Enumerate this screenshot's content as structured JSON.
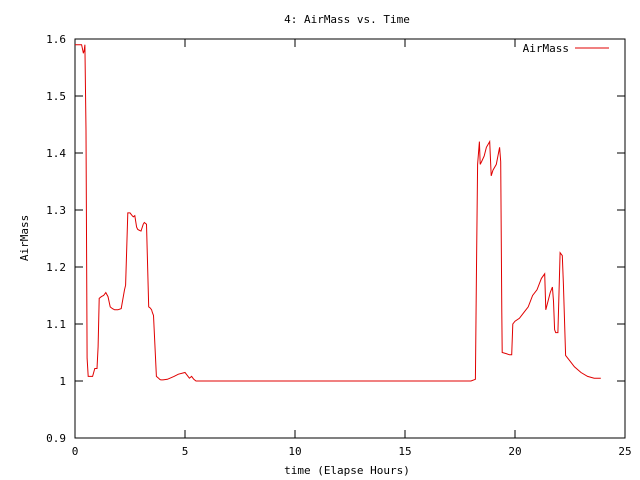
{
  "chart_data": {
    "type": "line",
    "title": "4: AirMass vs. Time",
    "xlabel": "time (Elapse Hours)",
    "ylabel": "AirMass",
    "xlim": [
      0,
      25
    ],
    "ylim": [
      0.9,
      1.6
    ],
    "xticks": [
      0,
      5,
      10,
      15,
      20,
      25
    ],
    "yticks": [
      0.9,
      1.0,
      1.1,
      1.2,
      1.3,
      1.4,
      1.5,
      1.6
    ],
    "ytick_labels": [
      "0.9",
      "1",
      "1.1",
      "1.2",
      "1.3",
      "1.4",
      "1.5",
      "1.6"
    ],
    "grid": false,
    "legend_position": "top-right",
    "series": [
      {
        "name": "AirMass",
        "color": "#e00000",
        "x": [
          0.0,
          0.15,
          0.3,
          0.38,
          0.42,
          0.45,
          0.5,
          0.55,
          0.6,
          0.8,
          0.9,
          1.0,
          1.05,
          1.1,
          1.2,
          1.3,
          1.4,
          1.5,
          1.6,
          1.7,
          1.8,
          1.85,
          1.95,
          2.1,
          2.25,
          2.3,
          2.4,
          2.5,
          2.6,
          2.65,
          2.72,
          2.8,
          2.85,
          2.9,
          3.0,
          3.1,
          3.15,
          3.25,
          3.35,
          3.42,
          3.48,
          3.52,
          3.57,
          3.7,
          3.8,
          3.85,
          3.9,
          4.0,
          4.2,
          4.5,
          4.7,
          5.0,
          5.2,
          5.3,
          5.4,
          5.5,
          6.0,
          8.0,
          10.0,
          12.0,
          14.0,
          16.0,
          18.0,
          18.2,
          18.25,
          18.3,
          18.38,
          18.42,
          18.48,
          18.6,
          18.7,
          18.85,
          18.92,
          19.0,
          19.15,
          19.3,
          19.35,
          19.4,
          19.42,
          19.6,
          19.75,
          19.85,
          19.9,
          20.0,
          20.2,
          20.4,
          20.6,
          20.8,
          21.0,
          21.2,
          21.35,
          21.4,
          21.5,
          21.6,
          21.7,
          21.75,
          21.8,
          21.85,
          21.95,
          22.05,
          22.15,
          22.2,
          22.3,
          22.5,
          22.7,
          23.0,
          23.3,
          23.6,
          23.9
        ],
        "y": [
          1.59,
          1.59,
          1.59,
          1.575,
          1.58,
          1.59,
          1.44,
          1.04,
          1.008,
          1.008,
          1.022,
          1.022,
          1.06,
          1.145,
          1.148,
          1.15,
          1.155,
          1.148,
          1.13,
          1.127,
          1.125,
          1.125,
          1.125,
          1.127,
          1.16,
          1.168,
          1.295,
          1.295,
          1.29,
          1.288,
          1.29,
          1.27,
          1.266,
          1.265,
          1.263,
          1.275,
          1.278,
          1.275,
          1.13,
          1.128,
          1.125,
          1.12,
          1.115,
          1.008,
          1.005,
          1.003,
          1.002,
          1.002,
          1.003,
          1.008,
          1.012,
          1.015,
          1.005,
          1.008,
          1.003,
          1.0,
          1.0,
          1.0,
          1.0,
          1.0,
          1.0,
          1.0,
          1.0,
          1.003,
          1.2,
          1.38,
          1.42,
          1.38,
          1.385,
          1.395,
          1.41,
          1.42,
          1.36,
          1.37,
          1.38,
          1.41,
          1.385,
          1.12,
          1.05,
          1.048,
          1.046,
          1.046,
          1.1,
          1.105,
          1.11,
          1.12,
          1.13,
          1.15,
          1.16,
          1.18,
          1.188,
          1.125,
          1.14,
          1.155,
          1.165,
          1.14,
          1.09,
          1.085,
          1.085,
          1.225,
          1.22,
          1.17,
          1.045,
          1.035,
          1.025,
          1.015,
          1.008,
          1.005,
          1.005
        ]
      }
    ]
  }
}
